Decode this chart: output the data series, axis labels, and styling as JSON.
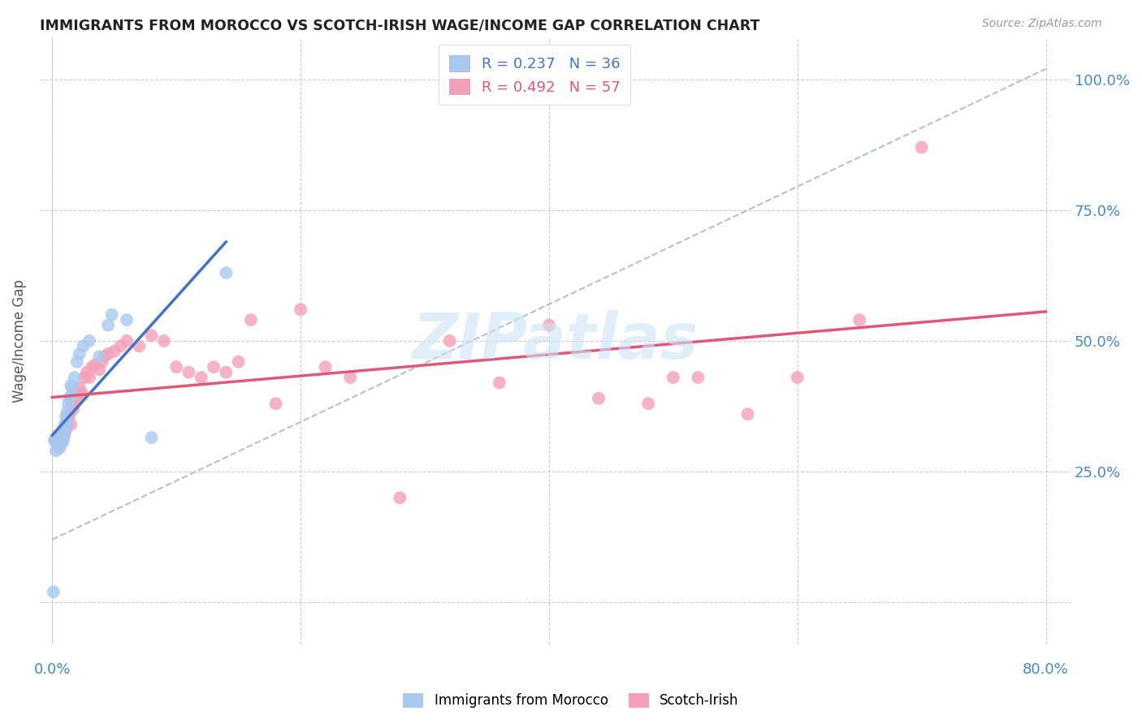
{
  "title": "IMMIGRANTS FROM MOROCCO VS SCOTCH-IRISH WAGE/INCOME GAP CORRELATION CHART",
  "source": "Source: ZipAtlas.com",
  "ylabel": "Wage/Income Gap",
  "legend_label1": "Immigrants from Morocco",
  "legend_label2": "Scotch-Irish",
  "r1": 0.237,
  "n1": 36,
  "r2": 0.492,
  "n2": 57,
  "xlim": [
    0.0,
    0.8
  ],
  "ylim": [
    -0.08,
    1.08
  ],
  "ytick_vals": [
    0.0,
    0.25,
    0.5,
    0.75,
    1.0
  ],
  "ytick_labels": [
    "",
    "25.0%",
    "50.0%",
    "75.0%",
    "100.0%"
  ],
  "color1": "#a8c8f0",
  "color2": "#f4a0b8",
  "line_color1": "#4472c4",
  "line_color2": "#e05878",
  "diagonal_color": "#b0b8c8",
  "watermark": "ZIPatlas",
  "morocco_x": [
    0.001,
    0.002,
    0.003,
    0.004,
    0.005,
    0.005,
    0.006,
    0.006,
    0.007,
    0.007,
    0.008,
    0.008,
    0.009,
    0.009,
    0.01,
    0.01,
    0.011,
    0.011,
    0.012,
    0.012,
    0.013,
    0.014,
    0.015,
    0.015,
    0.016,
    0.018,
    0.02,
    0.022,
    0.025,
    0.03,
    0.038,
    0.045,
    0.048,
    0.06,
    0.08,
    0.14
  ],
  "morocco_y": [
    0.02,
    0.31,
    0.29,
    0.3,
    0.3,
    0.32,
    0.295,
    0.31,
    0.305,
    0.315,
    0.305,
    0.325,
    0.31,
    0.33,
    0.32,
    0.34,
    0.335,
    0.355,
    0.345,
    0.365,
    0.38,
    0.39,
    0.395,
    0.415,
    0.41,
    0.43,
    0.46,
    0.475,
    0.49,
    0.5,
    0.47,
    0.53,
    0.55,
    0.54,
    0.315,
    0.63
  ],
  "scotchirish_x": [
    0.002,
    0.004,
    0.005,
    0.006,
    0.007,
    0.008,
    0.009,
    0.01,
    0.011,
    0.012,
    0.013,
    0.014,
    0.015,
    0.016,
    0.017,
    0.018,
    0.02,
    0.022,
    0.024,
    0.026,
    0.028,
    0.03,
    0.032,
    0.035,
    0.038,
    0.04,
    0.042,
    0.045,
    0.05,
    0.055,
    0.06,
    0.07,
    0.08,
    0.09,
    0.1,
    0.11,
    0.12,
    0.13,
    0.14,
    0.15,
    0.16,
    0.18,
    0.2,
    0.22,
    0.24,
    0.28,
    0.32,
    0.36,
    0.4,
    0.44,
    0.48,
    0.5,
    0.52,
    0.56,
    0.6,
    0.65,
    0.7
  ],
  "scotchirish_y": [
    0.31,
    0.305,
    0.315,
    0.3,
    0.31,
    0.32,
    0.315,
    0.325,
    0.33,
    0.34,
    0.355,
    0.36,
    0.34,
    0.38,
    0.37,
    0.38,
    0.39,
    0.41,
    0.4,
    0.43,
    0.44,
    0.43,
    0.45,
    0.455,
    0.445,
    0.46,
    0.47,
    0.475,
    0.48,
    0.49,
    0.5,
    0.49,
    0.51,
    0.5,
    0.45,
    0.44,
    0.43,
    0.45,
    0.44,
    0.46,
    0.54,
    0.38,
    0.56,
    0.45,
    0.43,
    0.2,
    0.5,
    0.42,
    0.53,
    0.39,
    0.38,
    0.43,
    0.43,
    0.36,
    0.43,
    0.54,
    0.87
  ]
}
